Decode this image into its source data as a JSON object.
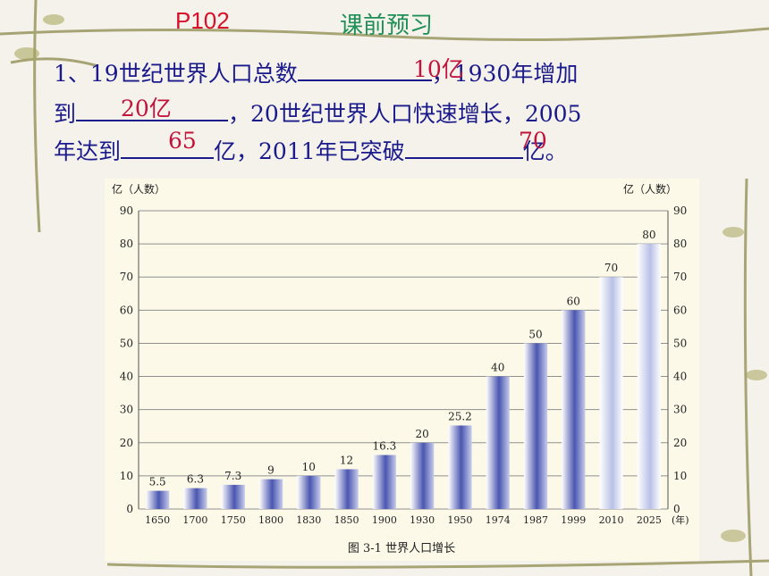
{
  "header": {
    "page_ref": "P102",
    "title": "课前预习"
  },
  "question": {
    "line1_start": "1、19世纪世界人口总数",
    "line1_end": "，1930年增加",
    "line2_start": "到",
    "line2_end": "，20世纪世界人口快速增长，2005",
    "line3_start": "年达到",
    "line3_mid": "亿，2011年已突破",
    "line3_end": "亿。",
    "answer_1": "10亿",
    "answer_2": "20亿",
    "answer_3": "65",
    "answer_4": "70"
  },
  "colors": {
    "bar_dark": "#4a56b0",
    "bar_light": "#ffffff",
    "answer": "#c0143c",
    "question": "#1a1a8c"
  },
  "chart_data": {
    "type": "bar",
    "title": "图 3-1  世界人口增长",
    "ylabel_left": "亿（人数）",
    "ylabel_right": "亿（人数）",
    "x_unit": "(年)",
    "ylim": [
      0,
      90
    ],
    "yticks": [
      0,
      10,
      20,
      30,
      40,
      50,
      60,
      70,
      80,
      90
    ],
    "grid": true,
    "categories": [
      "1650",
      "1700",
      "1750",
      "1800",
      "1830",
      "1850",
      "1900",
      "1930",
      "1950",
      "1974",
      "1987",
      "1999",
      "2010",
      "2025"
    ],
    "values": [
      5.5,
      6.3,
      7.3,
      9,
      10,
      12,
      16.3,
      20,
      25.2,
      40,
      50,
      60,
      70,
      80
    ],
    "value_labels": [
      "5.5",
      "6.3",
      "7.3",
      "9",
      "10",
      "12",
      "16.3",
      "20",
      "25.2",
      "40",
      "50",
      "60",
      "70",
      "80"
    ],
    "projected_from": "2010"
  }
}
